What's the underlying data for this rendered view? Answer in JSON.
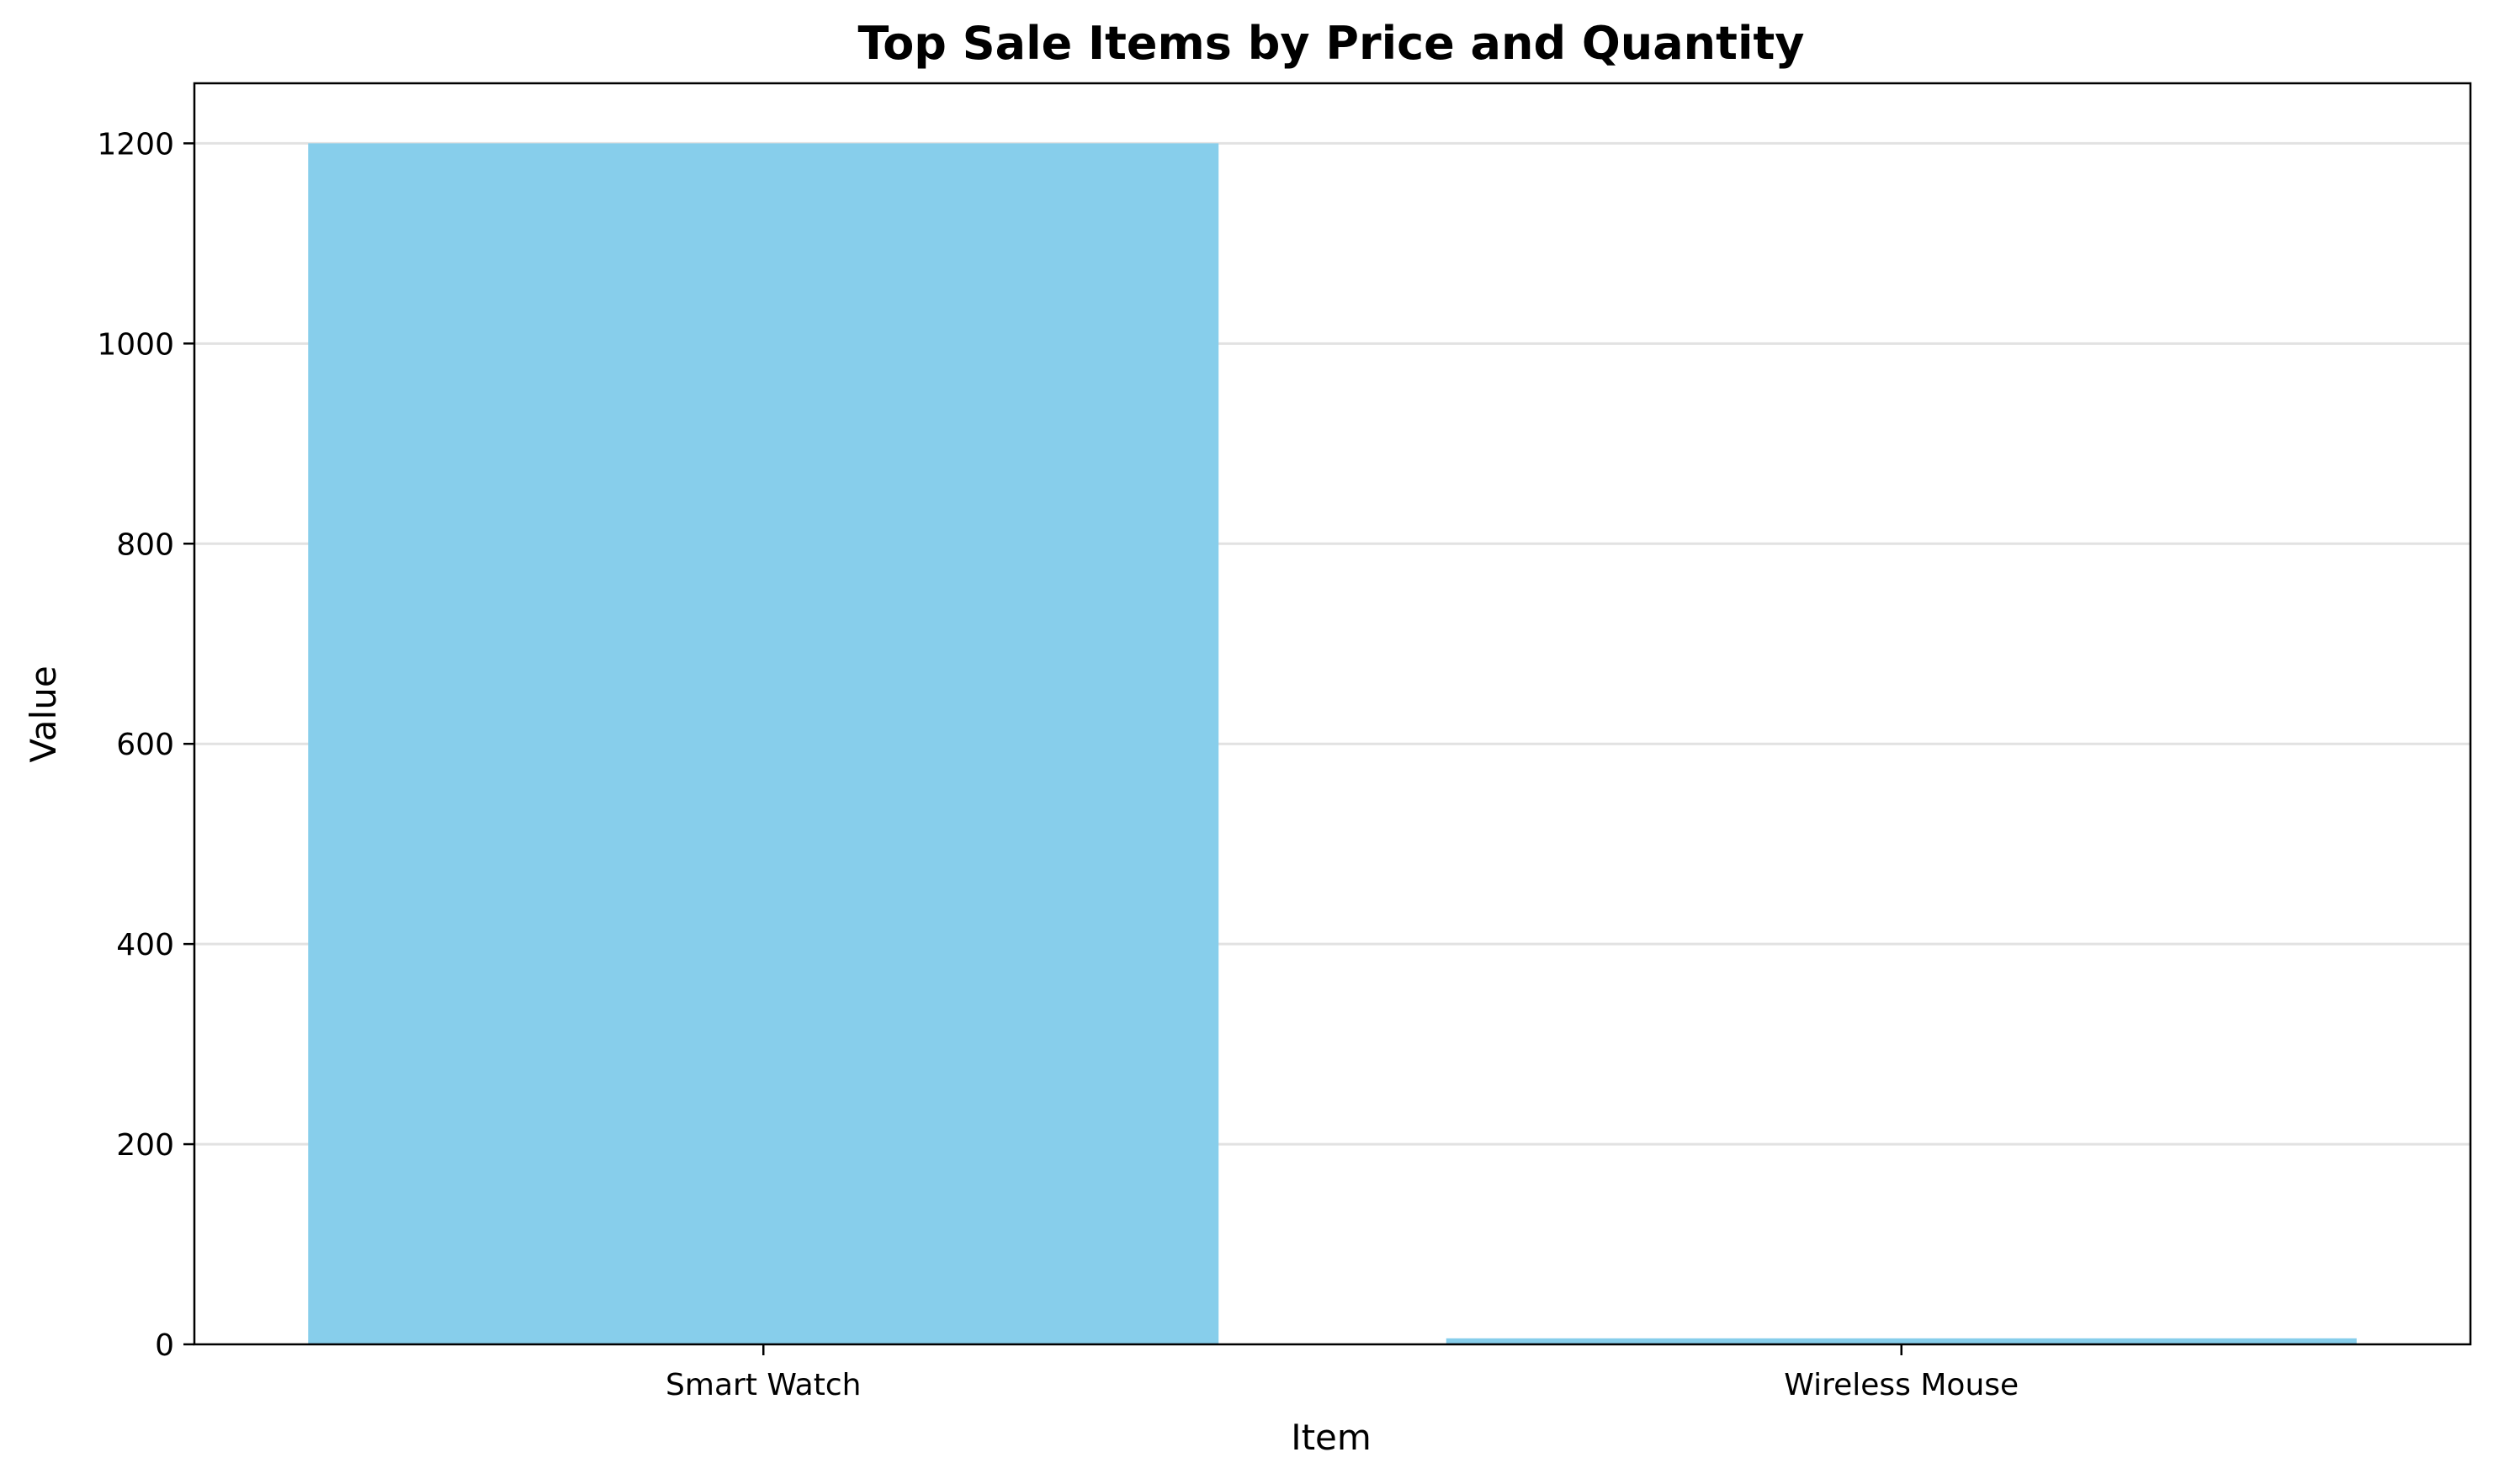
{
  "chart_data": {
    "type": "bar",
    "title": "Top Sale Items by Price and Quantity",
    "xlabel": "Item",
    "ylabel": "Value",
    "categories": [
      "Smart Watch",
      "Wireless Mouse"
    ],
    "values": [
      1200,
      6
    ],
    "ylim": [
      0,
      1260
    ],
    "yticks": [
      0,
      200,
      400,
      600,
      800,
      1000,
      1200
    ],
    "grid": "y-axis",
    "legend": "none",
    "colors": {
      "bar": "#87CEEB",
      "grid": "#e2e2e2",
      "axis": "#000000"
    }
  }
}
